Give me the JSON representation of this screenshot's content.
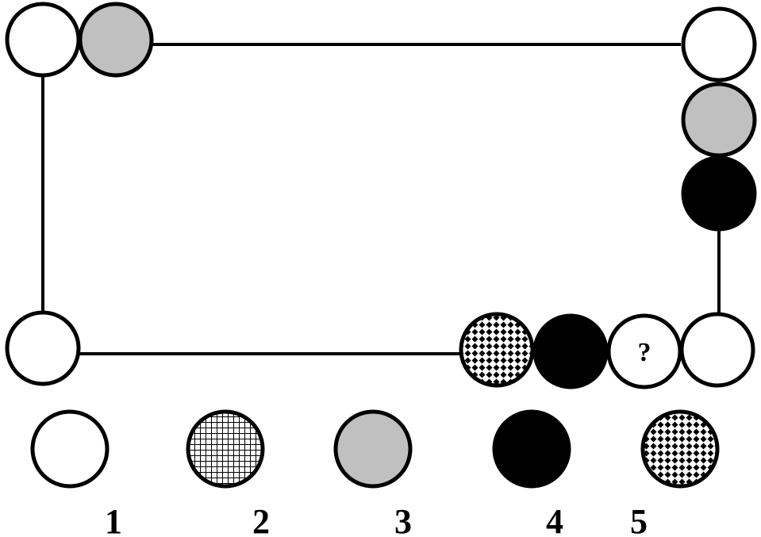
{
  "puzzle": {
    "question_mark": "?",
    "patterns": {
      "white": "#ffffff",
      "gray": "#c0c0c0",
      "black": "#000000",
      "grid": "grid-pattern",
      "diamond": "diamond-pattern"
    },
    "track_sequence": [
      "white",
      "gray",
      "white",
      "gray",
      "black",
      "white",
      "unknown",
      "black",
      "diamond",
      "white"
    ]
  },
  "options": [
    {
      "label": "1",
      "pattern": "white"
    },
    {
      "label": "2",
      "pattern": "grid"
    },
    {
      "label": "3",
      "pattern": "gray"
    },
    {
      "label": "4",
      "pattern": "black"
    },
    {
      "label": "5",
      "pattern": "diamond"
    }
  ]
}
